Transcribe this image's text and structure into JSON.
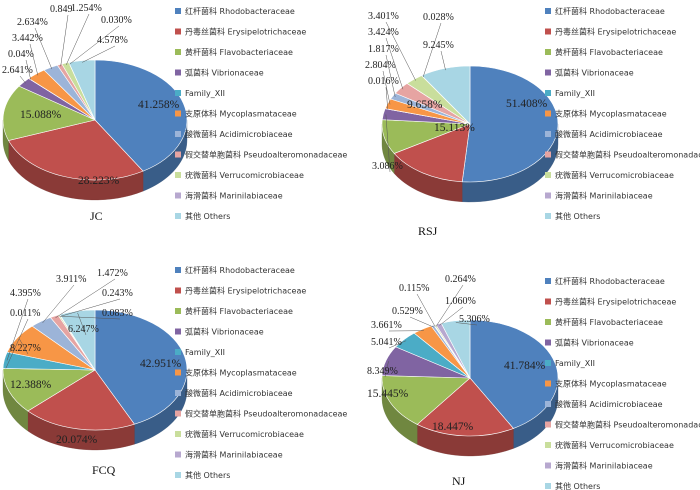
{
  "categories": [
    "红杆菌科 Rhodobacteraceae",
    "丹毒丝菌科 Erysipelotrichaceae",
    "黄杆菌科 Flavobacteriaceae",
    "弧菌科 Vibrionaceae",
    "Family_XII",
    "支原体科 Mycoplasmataceae",
    "酸微菌科 Acidimicrobiaceae",
    "假交替单胞菌科 Pseudoalteromonadaceae",
    "疣微菌科 Verrucomicrobiaceae",
    "海滑菌科 Marinilabiaceae",
    "其他 Others"
  ],
  "colors": [
    "#4f81bd",
    "#c0504d",
    "#9bbb59",
    "#8064a2",
    "#4bacc6",
    "#f79646",
    "#9cb4d8",
    "#e6a4a2",
    "#c9de9c",
    "#b7a8cf",
    "#a8d6e4"
  ],
  "chart_data": [
    {
      "type": "pie",
      "title": "JC",
      "categories": [
        "红杆菌科 Rhodobacteraceae",
        "丹毒丝菌科 Erysipelotrichaceae",
        "黄杆菌科 Flavobacteriaceae",
        "弧菌科 Vibrionaceae",
        "Family_XII",
        "支原体科 Mycoplasmataceae",
        "酸微菌科 Acidimicrobiaceae",
        "假交替单胞菌科 Pseudoalteromonadaceae",
        "疣微菌科 Verrucomicrobiaceae",
        "海滑菌科 Marinilabiaceae",
        "其他 Others"
      ],
      "values": [
        41.258,
        28.223,
        15.088,
        2.641,
        0.04,
        3.442,
        2.634,
        0.849,
        1.254,
        0.03,
        4.578
      ],
      "labels": [
        "41.258%",
        "28.223%",
        "15.088%",
        "2.641%",
        "0.04%",
        "3.442%",
        "2.634%",
        "0.849",
        "1.254%",
        "0.030%",
        "4.578%"
      ],
      "legend": "right"
    },
    {
      "type": "pie",
      "title": "RSJ",
      "categories": [
        "红杆菌科 Rhodobacteraceae",
        "丹毒丝菌科 Erysipelotrichaceae",
        "黄杆菌科 Flavobacteriaceae",
        "弧菌科 Vibrionaceae",
        "Family_XII",
        "支原体科 Mycoplasmataceae",
        "酸微菌科 Acidimicrobiaceae",
        "假交替单胞菌科 Pseudoalteromonadaceae",
        "疣微菌科 Verrucomicrobiaceae",
        "海滑菌科 Marinilabiaceae",
        "其他 Others"
      ],
      "values": [
        51.408,
        15.113,
        9.658,
        3.086,
        0.016,
        2.804,
        1.817,
        3.424,
        3.401,
        0.028,
        9.245
      ],
      "labels": [
        "51.408%",
        "15.113%",
        "9.658%",
        "3.086%",
        "0.016%",
        "2.804%",
        "1.817%",
        "3.424%",
        "3.401%",
        "0.028%",
        "9.245%"
      ],
      "legend": "right"
    },
    {
      "type": "pie",
      "title": "FCQ",
      "categories": [
        "红杆菌科 Rhodobacteraceae",
        "丹毒丝菌科 Erysipelotrichaceae",
        "黄杆菌科 Flavobacteriaceae",
        "弧菌科 Vibrionaceae",
        "Family_XII",
        "支原体科 Mycoplasmataceae",
        "酸微菌科 Acidimicrobiaceae",
        "假交替单胞菌科 Pseudoalteromonadaceae",
        "疣微菌科 Verrucomicrobiaceae",
        "海滑菌科 Marinilabiaceae",
        "其他 Others"
      ],
      "values": [
        42.951,
        20.074,
        12.388,
        0.011,
        4.395,
        8.227,
        3.911,
        1.472,
        0.243,
        0.083,
        6.247
      ],
      "labels": [
        "42.951%",
        "20.074%",
        "12.388%",
        "0.011%",
        "4.395%",
        "8.227%",
        "3.911%",
        "1.472%",
        "0.243%",
        "0.083%",
        "6.247%"
      ],
      "legend": "right"
    },
    {
      "type": "pie",
      "title": "NJ",
      "categories": [
        "红杆菌科 Rhodobacteraceae",
        "丹毒丝菌科 Erysipelotrichaceae",
        "黄杆菌科 Flavobacteriaceae",
        "弧菌科 Vibrionaceae",
        "Family_XII",
        "支原体科 Mycoplasmataceae",
        "酸微菌科 Acidimicrobiaceae",
        "假交替单胞菌科 Pseudoalteromonadaceae",
        "疣微菌科 Verrucomicrobiaceae",
        "海滑菌科 Marinilabiaceae",
        "其他 Others"
      ],
      "values": [
        41.784,
        18.447,
        15.445,
        8.349,
        5.041,
        3.661,
        0.529,
        0.115,
        0.264,
        1.06,
        5.306
      ],
      "labels": [
        "41.784%",
        "18.447%",
        "15.445%",
        "8.349%",
        "5.041%",
        "3.661%",
        "0.529%",
        "0.115%",
        "0.264%",
        "1.060%",
        "5.306%"
      ],
      "legend": "right"
    }
  ]
}
